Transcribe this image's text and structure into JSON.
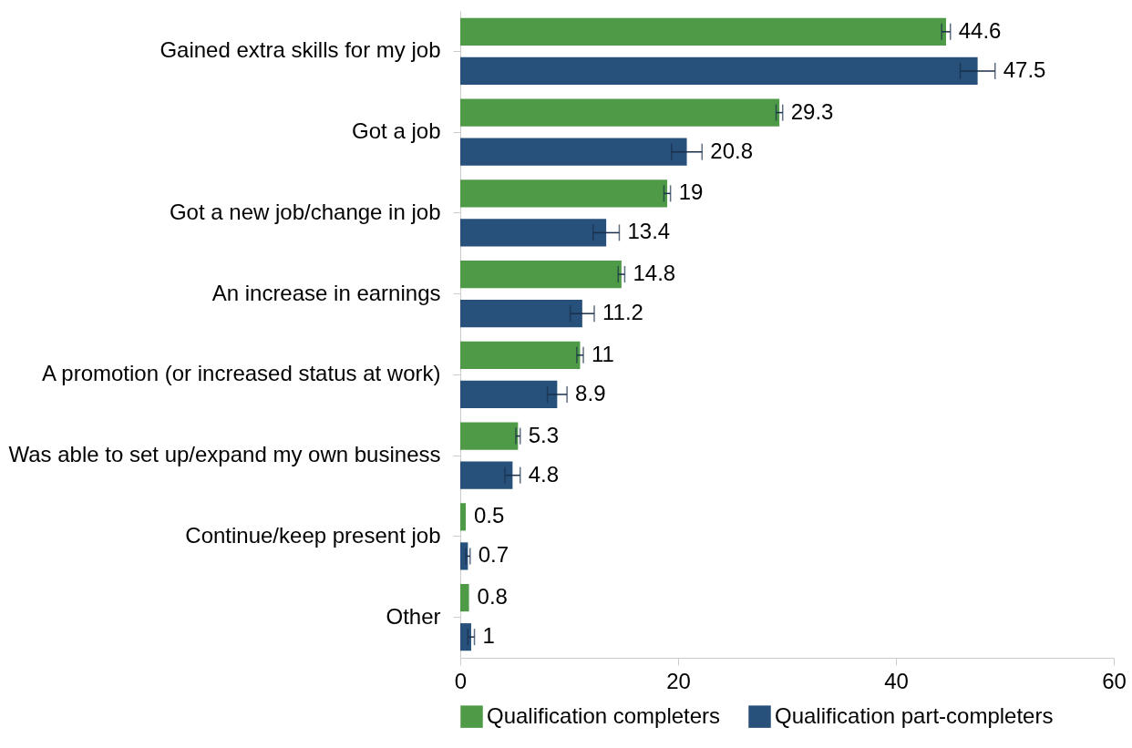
{
  "chart_data": {
    "type": "bar",
    "orientation": "horizontal",
    "categories": [
      "Gained extra skills for my job",
      "Got a job",
      "Got a new job/change in job",
      "An increase in earnings",
      "A promotion (or increased status at work)",
      "Was able to set up/expand my own business",
      "Continue/keep present job",
      "Other"
    ],
    "series": [
      {
        "name": "Qualification completers",
        "color": "#4e9a47",
        "values": [
          44.6,
          29.3,
          19,
          14.8,
          11,
          5.3,
          0.5,
          0.8
        ],
        "errors": [
          0.4,
          0.3,
          0.3,
          0.3,
          0.3,
          0.2,
          null,
          null
        ]
      },
      {
        "name": "Qualification part-completers",
        "color": "#27507a",
        "values": [
          47.5,
          20.8,
          13.4,
          11.2,
          8.9,
          4.8,
          0.7,
          1
        ],
        "errors": [
          1.6,
          1.4,
          1.2,
          1.1,
          0.9,
          0.7,
          0.2,
          0.3
        ]
      }
    ],
    "xlim": [
      0,
      60
    ],
    "xticks": [
      0,
      20,
      40,
      60
    ],
    "grid": false,
    "legend": "bottom",
    "data_labels": true
  }
}
